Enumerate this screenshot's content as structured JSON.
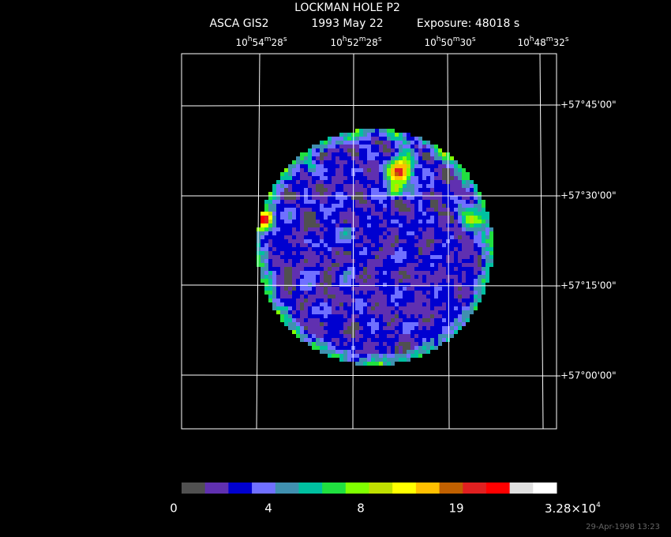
{
  "header": {
    "title": "LOCKMAN HOLE P2",
    "instrument": "ASCA GIS2",
    "date": "1993 May 22",
    "exposure": "Exposure: 48018 s"
  },
  "ra_labels": [
    {
      "h": "10",
      "hu": "h",
      "m": "54",
      "mu": "m",
      "s": "28",
      "su": "s"
    },
    {
      "h": "10",
      "hu": "h",
      "m": "52",
      "mu": "m",
      "s": "28",
      "su": "s"
    },
    {
      "h": "10",
      "hu": "h",
      "m": "50",
      "mu": "m",
      "s": "30",
      "su": "s"
    },
    {
      "h": "10",
      "hu": "h",
      "m": "48",
      "mu": "m",
      "s": "32",
      "su": "s"
    }
  ],
  "dec_labels": [
    "+57°45'00\"",
    "+57°30'00\"",
    "+57°15'00\"",
    "+57°00'00\""
  ],
  "colorbar": {
    "colors": [
      "#505050",
      "#6030b0",
      "#0000d0",
      "#7070ff",
      "#4090b0",
      "#00c0a0",
      "#20e040",
      "#80ff00",
      "#c0e000",
      "#ffff00",
      "#ffc000",
      "#c06000",
      "#e02020",
      "#ff0000",
      "#e0e0e0",
      "#ffffff"
    ],
    "labels": [
      "0",
      "4",
      "8",
      "19"
    ],
    "max_label": {
      "mantissa": "3.28×10",
      "exponent": "4"
    }
  },
  "timestamp": "29-Apr-1998 13:23"
}
